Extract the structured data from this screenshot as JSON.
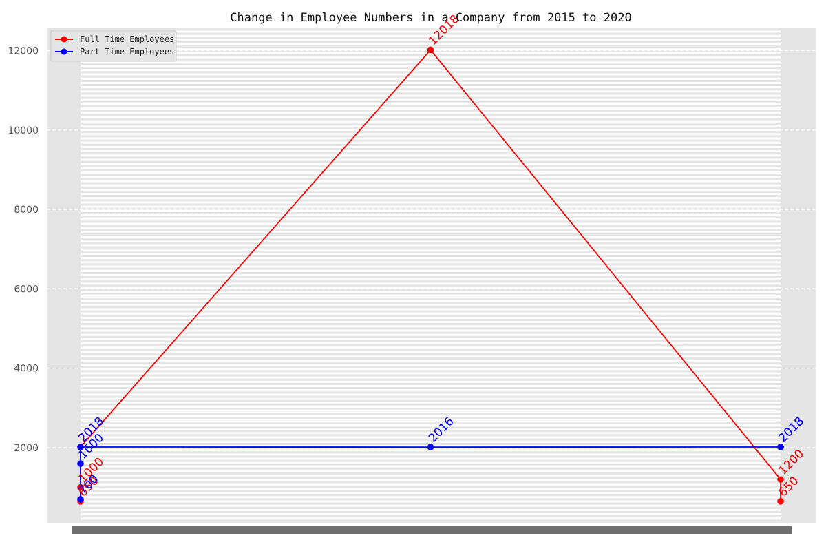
{
  "chart_data": {
    "type": "line",
    "title": "Change in Employee Numbers in a Company from 2015 to 2020",
    "xlabel": "",
    "ylabel": "",
    "ylim": [
      0,
      12500
    ],
    "yticks": [
      "2000",
      "4000",
      "6000",
      "8000",
      "10000",
      "12000"
    ],
    "grid": true,
    "legend_position": "top-left",
    "series": [
      {
        "name": "Full Time Employees",
        "color": "#ff0000",
        "points": [
          {
            "x": 0,
            "y": 650,
            "label": "650"
          },
          {
            "x": 0,
            "y": 1000,
            "label": "1000"
          },
          {
            "x": 0,
            "y": 2018,
            "label": "2018"
          },
          {
            "x": 1,
            "y": 12018,
            "label": "12018"
          },
          {
            "x": 2,
            "y": 1200,
            "label": "1200"
          },
          {
            "x": 2,
            "y": 650,
            "label": "650"
          }
        ]
      },
      {
        "name": "Part Time Employees",
        "color": "#0000ff",
        "points": [
          {
            "x": 0,
            "y": 700,
            "label": "700"
          },
          {
            "x": 0,
            "y": 1600,
            "label": "1600"
          },
          {
            "x": 0,
            "y": 2018,
            "label": "2018"
          },
          {
            "x": 1,
            "y": 2016,
            "label": "2016"
          },
          {
            "x": 2,
            "y": 2018,
            "label": "2018"
          },
          {
            "x": 2,
            "y": 2018,
            "label": "2018"
          }
        ]
      }
    ]
  }
}
